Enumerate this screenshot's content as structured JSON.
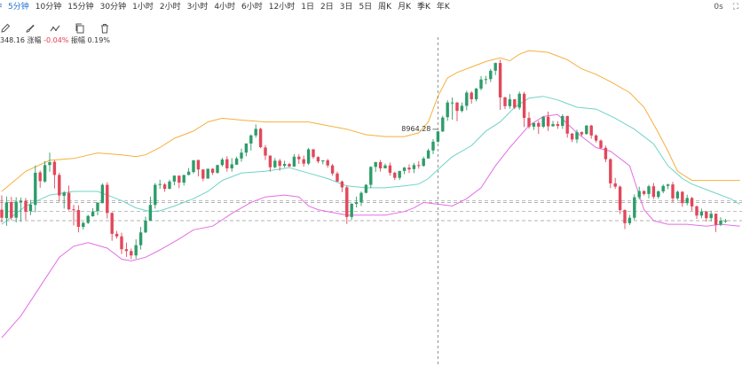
{
  "toolbar": {
    "timeframes": [
      {
        "label": "分钟",
        "active": true
      },
      {
        "label": "5分钟",
        "active": true
      },
      {
        "label": "10分钟",
        "active": false
      },
      {
        "label": "15分钟",
        "active": false
      },
      {
        "label": "30分钟",
        "active": false
      },
      {
        "label": "1小时",
        "active": false
      },
      {
        "label": "2小时",
        "active": false
      },
      {
        "label": "3小时",
        "active": false
      },
      {
        "label": "4小时",
        "active": false
      },
      {
        "label": "6小时",
        "active": false
      },
      {
        "label": "12小时",
        "active": false
      },
      {
        "label": "1日",
        "active": false
      },
      {
        "label": "2日",
        "active": false
      },
      {
        "label": "3日",
        "active": false
      },
      {
        "label": "5日",
        "active": false
      },
      {
        "label": "周K",
        "active": false
      },
      {
        "label": "月K",
        "active": false
      },
      {
        "label": "季K",
        "active": false
      },
      {
        "label": "年K",
        "active": false
      }
    ],
    "right_label": "0s",
    "tools": [
      "pencil-icon",
      "brush-icon",
      "line-tool-icon",
      "copy-icon",
      "trash-icon"
    ]
  },
  "stats": {
    "value_label": "348.16",
    "change_label": "涨幅",
    "change_value": "-0.04%",
    "amplitude_label": "振幅",
    "amplitude_value": "0.19%"
  },
  "colors": {
    "up": "#2e9c6a",
    "down": "#e2475a",
    "upper_band": "#f5b03d",
    "middle_band": "#6fd3c6",
    "lower_band": "#e46ee4",
    "active_tab": "#1c6ed6"
  },
  "chart_data": {
    "type": "candlestick",
    "high_marker": "8964.28",
    "crosshair_index": 91,
    "candles": [
      [
        0.0,
        -2.2,
        -3.5,
        3.9
      ],
      [
        -2.3,
        2.0,
        -4.4,
        3.6
      ],
      [
        2.1,
        -2.2,
        -2.9,
        3.5
      ],
      [
        -2.2,
        2.2,
        -3.5,
        3.4
      ],
      [
        2.1,
        2.4,
        -3.3,
        3.3
      ],
      [
        2.4,
        -0.6,
        -2.8,
        3.2
      ],
      [
        -0.4,
        1.4,
        -1.5,
        2.7
      ],
      [
        1.3,
        10.1,
        -0.7,
        12.1
      ],
      [
        10.2,
        7.8,
        6.0,
        10.7
      ],
      [
        7.7,
        12.2,
        7.4,
        13.3
      ],
      [
        12.2,
        13.0,
        10.4,
        15.6
      ],
      [
        13.1,
        9.5,
        5.8,
        13.5
      ],
      [
        9.5,
        3.9,
        2.2,
        10.1
      ],
      [
        3.8,
        4.7,
        0.3,
        5.1
      ],
      [
        4.6,
        0.1,
        -0.2,
        6.6
      ],
      [
        0.1,
        -0.1,
        -4.3,
        1.3
      ],
      [
        -0.1,
        -4.7,
        -6.2,
        1.2
      ],
      [
        -4.7,
        -3.6,
        -5.4,
        -3.3
      ],
      [
        -3.6,
        -1.7,
        -3.9,
        -1.4
      ],
      [
        -1.8,
        -0.5,
        -1.9,
        0.4
      ],
      [
        -0.4,
        1.9,
        -1.5,
        2.1
      ],
      [
        1.8,
        6.8,
        1.7,
        7.2
      ],
      [
        6.8,
        -0.9,
        -2.4,
        7.5
      ],
      [
        -0.9,
        -6.6,
        -8.5,
        -0.7
      ],
      [
        -6.6,
        -7.3,
        -7.9,
        -5.8
      ],
      [
        -7.3,
        -10.8,
        -12.1,
        -6.3
      ],
      [
        -10.8,
        -11.3,
        -12.9,
        -9.0
      ],
      [
        -11.3,
        -12.5,
        -13.5,
        -10.6
      ],
      [
        -12.5,
        -9.7,
        -13.4,
        -8.1
      ],
      [
        -9.7,
        -6.2,
        -10.9,
        -4.7
      ],
      [
        -6.2,
        -3.0,
        -6.4,
        -1.9
      ],
      [
        -3.0,
        1.3,
        -3.1,
        3.6
      ],
      [
        1.3,
        6.8,
        0.3,
        7.3
      ],
      [
        6.8,
        7.0,
        5.7,
        8.2
      ],
      [
        6.9,
        5.7,
        4.9,
        7.3
      ],
      [
        5.7,
        7.7,
        5.6,
        8.2
      ],
      [
        7.7,
        9.3,
        6.7,
        9.4
      ],
      [
        9.3,
        7.4,
        5.9,
        9.4
      ],
      [
        7.4,
        9.5,
        6.6,
        9.5
      ],
      [
        9.5,
        10.4,
        9.4,
        11.4
      ],
      [
        10.3,
        13.5,
        9.9,
        13.6
      ],
      [
        13.6,
        11.0,
        9.1,
        13.6
      ],
      [
        11.0,
        8.5,
        7.8,
        11.0
      ],
      [
        8.5,
        11.2,
        8.5,
        11.2
      ],
      [
        11.2,
        10.1,
        9.5,
        11.3
      ],
      [
        10.1,
        12.2,
        9.8,
        12.3
      ],
      [
        12.2,
        13.7,
        11.8,
        14.2
      ],
      [
        13.8,
        11.3,
        10.4,
        14.6
      ],
      [
        11.3,
        12.4,
        10.4,
        14.1
      ],
      [
        12.3,
        14.0,
        12.3,
        14.5
      ],
      [
        14.0,
        15.6,
        13.1,
        16.7
      ],
      [
        15.6,
        18.1,
        14.6,
        18.1
      ],
      [
        18.1,
        20.3,
        16.2,
        20.6
      ],
      [
        20.3,
        22.1,
        19.7,
        23.3
      ],
      [
        22.1,
        17.1,
        16.8,
        22.4
      ],
      [
        17.0,
        14.8,
        13.6,
        17.7
      ],
      [
        14.8,
        11.6,
        10.4,
        14.8
      ],
      [
        11.6,
        13.4,
        11.3,
        14.1
      ],
      [
        13.4,
        12.0,
        10.7,
        13.9
      ],
      [
        12.0,
        12.5,
        11.5,
        13.4
      ],
      [
        12.5,
        11.8,
        11.7,
        12.8
      ],
      [
        11.8,
        14.5,
        11.7,
        15.2
      ],
      [
        14.5,
        13.8,
        12.5,
        15.2
      ],
      [
        13.8,
        12.6,
        11.8,
        14.8
      ],
      [
        12.6,
        16.5,
        12.2,
        16.9
      ],
      [
        16.5,
        14.4,
        13.9,
        16.6
      ],
      [
        14.4,
        13.2,
        12.7,
        14.6
      ],
      [
        13.2,
        13.5,
        12.4,
        13.5
      ],
      [
        13.5,
        12.1,
        11.5,
        13.9
      ],
      [
        12.1,
        9.9,
        9.3,
        12.5
      ],
      [
        9.9,
        7.7,
        7.6,
        10.4
      ],
      [
        7.7,
        6.1,
        4.8,
        8.0
      ],
      [
        6.1,
        -2.0,
        -3.9,
        6.6
      ],
      [
        -2.0,
        1.6,
        -2.8,
        1.8
      ],
      [
        1.6,
        2.0,
        0.6,
        3.6
      ],
      [
        2.0,
        4.6,
        1.0,
        5.0
      ],
      [
        4.6,
        6.8,
        4.5,
        7.0
      ],
      [
        6.8,
        11.7,
        5.9,
        11.9
      ],
      [
        11.7,
        13.0,
        10.3,
        13.1
      ],
      [
        13.0,
        11.3,
        10.4,
        13.6
      ],
      [
        11.3,
        12.1,
        11.3,
        12.6
      ],
      [
        12.1,
        10.1,
        9.3,
        12.9
      ],
      [
        10.1,
        8.7,
        8.1,
        10.4
      ],
      [
        8.7,
        10.6,
        8.1,
        10.6
      ],
      [
        10.6,
        11.5,
        9.7,
        11.7
      ],
      [
        11.5,
        11.0,
        10.0,
        12.4
      ],
      [
        11.1,
        12.2,
        10.0,
        12.8
      ],
      [
        12.2,
        12.0,
        11.2,
        13.3
      ],
      [
        12.0,
        14.0,
        11.7,
        14.5
      ],
      [
        14.0,
        16.2,
        14.0,
        16.7
      ],
      [
        16.2,
        18.6,
        15.2,
        19.3
      ],
      [
        18.6,
        21.4,
        18.3,
        21.5
      ],
      [
        21.4,
        25.2,
        21.2,
        25.7
      ],
      [
        25.3,
        29.3,
        24.3,
        29.9
      ],
      [
        29.3,
        29.3,
        24.6,
        30.7
      ],
      [
        29.3,
        27.0,
        24.2,
        29.4
      ],
      [
        27.0,
        28.4,
        26.6,
        29.3
      ],
      [
        28.4,
        32.0,
        27.2,
        32.5
      ],
      [
        32.0,
        30.2,
        29.0,
        32.4
      ],
      [
        30.2,
        33.1,
        29.6,
        33.3
      ],
      [
        33.1,
        35.6,
        32.6,
        36.5
      ],
      [
        35.6,
        35.7,
        34.3,
        36.6
      ],
      [
        35.7,
        38.0,
        34.9,
        38.5
      ],
      [
        38.0,
        40.1,
        36.8,
        40.2
      ],
      [
        40.1,
        30.7,
        27.3,
        41.0
      ],
      [
        30.7,
        28.3,
        27.5,
        30.9
      ],
      [
        28.3,
        30.2,
        27.6,
        31.6
      ],
      [
        30.2,
        27.9,
        27.5,
        30.2
      ],
      [
        27.9,
        31.7,
        27.3,
        32.3
      ],
      [
        31.7,
        25.1,
        22.6,
        32.2
      ],
      [
        25.1,
        22.7,
        22.2,
        26.7
      ],
      [
        22.7,
        23.7,
        21.8,
        23.8
      ],
      [
        23.7,
        22.7,
        20.7,
        24.3
      ],
      [
        22.7,
        25.4,
        22.3,
        25.5
      ],
      [
        25.4,
        22.8,
        21.5,
        26.8
      ],
      [
        22.8,
        23.4,
        22.7,
        24.3
      ],
      [
        23.4,
        22.9,
        22.1,
        24.2
      ],
      [
        22.9,
        25.6,
        22.1,
        26.1
      ],
      [
        25.6,
        20.8,
        19.7,
        25.7
      ],
      [
        20.8,
        19.2,
        18.5,
        21.0
      ],
      [
        19.2,
        21.2,
        18.2,
        21.9
      ],
      [
        21.2,
        20.6,
        20.1,
        21.4
      ],
      [
        20.7,
        23.0,
        20.5,
        23.1
      ],
      [
        23.0,
        20.3,
        19.4,
        23.2
      ],
      [
        20.3,
        18.9,
        18.4,
        20.6
      ],
      [
        18.9,
        16.9,
        16.5,
        19.2
      ],
      [
        16.9,
        13.8,
        13.0,
        17.5
      ],
      [
        13.8,
        7.2,
        5.9,
        14.1
      ],
      [
        7.2,
        6.3,
        5.7,
        8.7
      ],
      [
        6.3,
        -0.1,
        -1.2,
        6.6
      ],
      [
        -0.1,
        -3.7,
        -5.3,
        0.1
      ],
      [
        -3.7,
        -2.2,
        -4.2,
        -1.4
      ],
      [
        -2.2,
        3.4,
        -2.8,
        4.2
      ],
      [
        3.4,
        5.1,
        2.8,
        6.3
      ],
      [
        5.1,
        4.3,
        3.9,
        5.3
      ],
      [
        4.3,
        6.4,
        3.1,
        6.8
      ],
      [
        6.4,
        3.5,
        2.9,
        7.3
      ],
      [
        3.5,
        5.0,
        3.0,
        5.3
      ],
      [
        5.0,
        6.5,
        4.5,
        6.9
      ],
      [
        6.5,
        6.9,
        5.6,
        7.1
      ],
      [
        6.9,
        3.1,
        2.1,
        7.6
      ],
      [
        3.1,
        4.9,
        2.7,
        5.2
      ],
      [
        4.9,
        1.8,
        0.8,
        5.1
      ],
      [
        1.8,
        3.2,
        1.2,
        4.1
      ],
      [
        3.2,
        0.9,
        -0.3,
        3.5
      ],
      [
        0.9,
        -1.6,
        -2.5,
        1.2
      ],
      [
        -1.6,
        -0.5,
        -2.3,
        0.3
      ],
      [
        -0.5,
        -2.3,
        -3.3,
        -0.3
      ],
      [
        -2.3,
        -1.1,
        -3.2,
        -0.3
      ],
      [
        -1.1,
        -4.1,
        -6.1,
        -1.0
      ],
      [
        -4.1,
        -3.0,
        -4.5,
        -2.1
      ],
      [
        -3.0,
        -3.0,
        -3.6,
        -2.5
      ]
    ],
    "bands": {
      "upper": [
        [
          0,
          5.0
        ],
        [
          5,
          10.5
        ],
        [
          10,
          13.5
        ],
        [
          15,
          14.0
        ],
        [
          20,
          15.5
        ],
        [
          25,
          15.0
        ],
        [
          28,
          14.5
        ],
        [
          30,
          15.0
        ],
        [
          33,
          17.0
        ],
        [
          36,
          19.5
        ],
        [
          40,
          21.5
        ],
        [
          43,
          24.0
        ],
        [
          46,
          25.0
        ],
        [
          50,
          24.5
        ],
        [
          55,
          24.0
        ],
        [
          60,
          24.0
        ],
        [
          64,
          24.0
        ],
        [
          68,
          23.0
        ],
        [
          72,
          22.0
        ],
        [
          76,
          20.5
        ],
        [
          80,
          20.0
        ],
        [
          84,
          20.0
        ],
        [
          87,
          21.0
        ],
        [
          89,
          24.0
        ],
        [
          91,
          31.0
        ],
        [
          93,
          36.0
        ],
        [
          95,
          37.5
        ],
        [
          98,
          39.0
        ],
        [
          101,
          40.5
        ],
        [
          104,
          41.5
        ],
        [
          106,
          40.7
        ],
        [
          108,
          42.5
        ],
        [
          110,
          43.5
        ],
        [
          114,
          43.0
        ],
        [
          118,
          41.0
        ],
        [
          121,
          38.5
        ],
        [
          124,
          37.0
        ],
        [
          127,
          35.0
        ],
        [
          131,
          32.0
        ],
        [
          134,
          28.0
        ],
        [
          137,
          21.0
        ],
        [
          139,
          16.0
        ],
        [
          141,
          10.5
        ],
        [
          144,
          8.0
        ],
        [
          148,
          8.0
        ],
        [
          154,
          8.0
        ]
      ],
      "middle": [
        [
          0,
          -4.0
        ],
        [
          5,
          1.0
        ],
        [
          10,
          4.0
        ],
        [
          15,
          5.0
        ],
        [
          20,
          5.0
        ],
        [
          25,
          2.5
        ],
        [
          28,
          0.5
        ],
        [
          31,
          -0.5
        ],
        [
          33,
          -0.3
        ],
        [
          36,
          1.0
        ],
        [
          40,
          3.0
        ],
        [
          43,
          5.0
        ],
        [
          46,
          8.0
        ],
        [
          50,
          10.0
        ],
        [
          55,
          10.5
        ],
        [
          60,
          11.5
        ],
        [
          64,
          10.0
        ],
        [
          68,
          8.5
        ],
        [
          72,
          6.5
        ],
        [
          76,
          6.0
        ],
        [
          80,
          6.0
        ],
        [
          84,
          6.5
        ],
        [
          87,
          7.0
        ],
        [
          89,
          8.5
        ],
        [
          91,
          11.0
        ],
        [
          94,
          14.5
        ],
        [
          98,
          17.5
        ],
        [
          101,
          21.5
        ],
        [
          104,
          24.0
        ],
        [
          107,
          28.0
        ],
        [
          110,
          30.5
        ],
        [
          113,
          31.0
        ],
        [
          116,
          30.0
        ],
        [
          120,
          28.0
        ],
        [
          124,
          27.5
        ],
        [
          128,
          25.0
        ],
        [
          132,
          22.0
        ],
        [
          136,
          18.0
        ],
        [
          139,
          12.0
        ],
        [
          142,
          8.5
        ],
        [
          144,
          7.0
        ],
        [
          148,
          5.0
        ],
        [
          152,
          3.0
        ],
        [
          154,
          1.5
        ]
      ],
      "lower": [
        [
          0,
          -35.0
        ],
        [
          4,
          -29.0
        ],
        [
          8,
          -21.0
        ],
        [
          12,
          -13.0
        ],
        [
          15,
          -10.0
        ],
        [
          18,
          -9.0
        ],
        [
          22,
          -10.5
        ],
        [
          25,
          -13.5
        ],
        [
          27,
          -14.0
        ],
        [
          30,
          -13.0
        ],
        [
          33,
          -11.0
        ],
        [
          37,
          -8.0
        ],
        [
          40,
          -5.5
        ],
        [
          44,
          -4.5
        ],
        [
          48,
          -1.0
        ],
        [
          52,
          2.0
        ],
        [
          55,
          3.5
        ],
        [
          59,
          4.0
        ],
        [
          62,
          3.5
        ],
        [
          64,
          1.0
        ],
        [
          66,
          0.0
        ],
        [
          68,
          -0.5
        ],
        [
          72,
          -1.5
        ],
        [
          76,
          -1.5
        ],
        [
          80,
          -1.5
        ],
        [
          84,
          -0.5
        ],
        [
          86,
          0.5
        ],
        [
          88,
          2.0
        ],
        [
          91,
          1.5
        ],
        [
          94,
          1.0
        ],
        [
          97,
          3.0
        ],
        [
          100,
          6.0
        ],
        [
          103,
          12.0
        ],
        [
          106,
          17.0
        ],
        [
          108,
          20.0
        ],
        [
          110,
          23.0
        ],
        [
          113,
          25.5
        ],
        [
          116,
          26.0
        ],
        [
          120,
          21.0
        ],
        [
          124,
          17.0
        ],
        [
          127,
          16.0
        ],
        [
          131,
          12.0
        ],
        [
          134,
          0.0
        ],
        [
          136,
          -3.0
        ],
        [
          139,
          -4.0
        ],
        [
          143,
          -4.0
        ],
        [
          147,
          -4.5
        ],
        [
          150,
          -4.0
        ],
        [
          154,
          -4.5
        ]
      ]
    },
    "reference_lines": [
      2.5,
      2.0,
      -0.5,
      -3.0
    ],
    "y_range": [
      -42,
      44
    ]
  }
}
